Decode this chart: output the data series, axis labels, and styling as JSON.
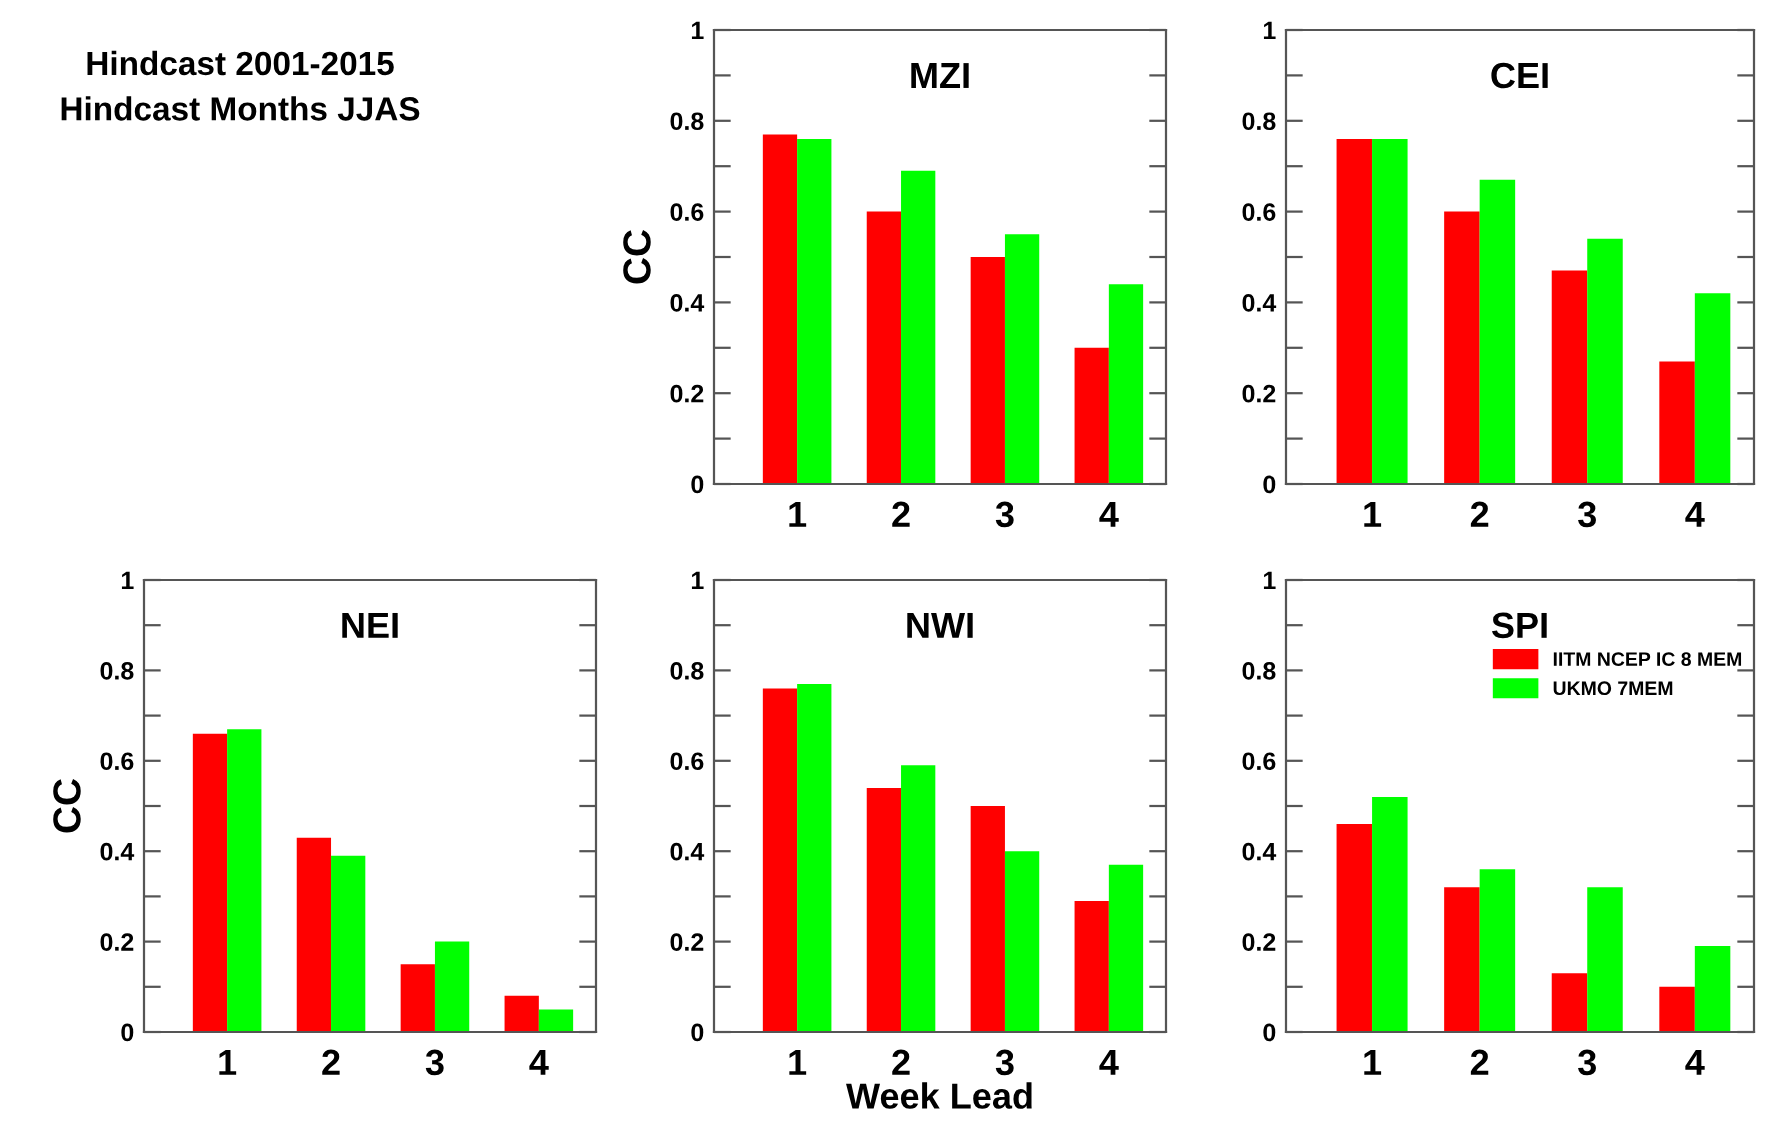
{
  "chart_data": [
    {
      "type": "other",
      "title": "Hindcast 2001-2015",
      "subtitle": "Hindcast Months JJAS"
    },
    {
      "type": "bar",
      "title": "MZI",
      "ylabel": "CC",
      "categories": [
        "1",
        "2",
        "3",
        "4"
      ],
      "ylim": [
        0,
        1
      ],
      "yticks": [
        0,
        {
          "value": 0.1,
          "label": null
        },
        0.2,
        {
          "value": 0.3,
          "label": null
        },
        0.4,
        {
          "value": 0.5,
          "label": null
        },
        0.6,
        {
          "value": 0.7,
          "label": null
        },
        0.8,
        {
          "value": 0.9,
          "label": null
        },
        1
      ],
      "series": [
        {
          "color": "#ff0000",
          "values": [
            0.77,
            0.6,
            0.5,
            0.3
          ]
        },
        {
          "color": "#00ff00",
          "values": [
            0.76,
            0.69,
            0.55,
            0.44
          ]
        }
      ]
    },
    {
      "type": "bar",
      "title": "CEI",
      "categories": [
        "1",
        "2",
        "3",
        "4"
      ],
      "ylim": [
        0,
        1
      ],
      "yticks": [
        0,
        {
          "value": 0.1,
          "label": null
        },
        0.2,
        {
          "value": 0.3,
          "label": null
        },
        0.4,
        {
          "value": 0.5,
          "label": null
        },
        0.6,
        {
          "value": 0.7,
          "label": null
        },
        0.8,
        {
          "value": 0.9,
          "label": null
        },
        1
      ],
      "series": [
        {
          "color": "#ff0000",
          "values": [
            0.76,
            0.6,
            0.47,
            0.27
          ]
        },
        {
          "color": "#00ff00",
          "values": [
            0.76,
            0.67,
            0.54,
            0.42
          ]
        }
      ]
    },
    {
      "type": "bar",
      "title": "NEI",
      "ylabel": "CC",
      "categories": [
        "1",
        "2",
        "3",
        "4"
      ],
      "ylim": [
        0,
        1
      ],
      "yticks": [
        0,
        {
          "value": 0.1,
          "label": null
        },
        0.2,
        {
          "value": 0.3,
          "label": null
        },
        0.4,
        {
          "value": 0.5,
          "label": null
        },
        0.6,
        {
          "value": 0.7,
          "label": null
        },
        0.8,
        {
          "value": 0.9,
          "label": null
        },
        1
      ],
      "series": [
        {
          "color": "#ff0000",
          "values": [
            0.66,
            0.43,
            0.15,
            0.08
          ]
        },
        {
          "color": "#00ff00",
          "values": [
            0.67,
            0.39,
            0.2,
            0.05
          ]
        }
      ]
    },
    {
      "type": "bar",
      "title": "NWI",
      "xlabel": "Week Lead",
      "categories": [
        "1",
        "2",
        "3",
        "4"
      ],
      "ylim": [
        0,
        1
      ],
      "yticks": [
        0,
        {
          "value": 0.1,
          "label": null
        },
        0.2,
        {
          "value": 0.3,
          "label": null
        },
        0.4,
        {
          "value": 0.5,
          "label": null
        },
        0.6,
        {
          "value": 0.7,
          "label": null
        },
        0.8,
        {
          "value": 0.9,
          "label": null
        },
        1
      ],
      "series": [
        {
          "color": "#ff0000",
          "values": [
            0.76,
            0.54,
            0.5,
            0.29
          ]
        },
        {
          "color": "#00ff00",
          "values": [
            0.77,
            0.59,
            0.4,
            0.37
          ]
        }
      ]
    },
    {
      "type": "bar",
      "title": "SPI",
      "categories": [
        "1",
        "2",
        "3",
        "4"
      ],
      "ylim": [
        0,
        1
      ],
      "yticks": [
        0,
        {
          "value": 0.1,
          "label": null
        },
        0.2,
        {
          "value": 0.3,
          "label": null
        },
        0.4,
        {
          "value": 0.5,
          "label": null
        },
        0.6,
        {
          "value": 0.7,
          "label": null
        },
        0.8,
        {
          "value": 0.9,
          "label": null
        },
        1
      ],
      "legend": "top right",
      "series": [
        {
          "name": "IITM NCEP IC 8 MEM",
          "color": "#ff0000",
          "values": [
            0.46,
            0.32,
            0.13,
            0.1
          ]
        },
        {
          "name": "UKMO 7MEM",
          "color": "#00ff00",
          "values": [
            0.52,
            0.36,
            0.32,
            0.19
          ]
        }
      ]
    }
  ]
}
